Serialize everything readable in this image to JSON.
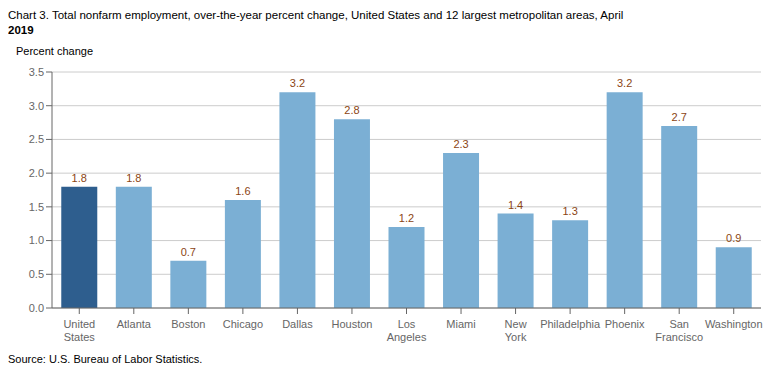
{
  "chart_data": {
    "type": "bar",
    "title": "Chart 3. Total nonfarm employment, over-the-year percent change, United States and 12 largest metropolitan areas, April\n2019",
    "y_label": "Percent change",
    "annotations": [
      "Source: U.S. Bureau of Labor Statistics."
    ],
    "categories": [
      "United\nStates",
      "Atlanta",
      "Boston",
      "Chicago",
      "Dallas",
      "Houston",
      "Los\nAngeles",
      "Miami",
      "New\nYork",
      "Philadelphia",
      "Phoenix",
      "San\nFrancisco",
      "Washington"
    ],
    "values": [
      1.8,
      1.8,
      0.7,
      1.6,
      3.2,
      2.8,
      1.2,
      2.3,
      1.4,
      1.3,
      3.2,
      2.7,
      0.9
    ],
    "colors": [
      "#2E5E8E",
      "#7BAFD4",
      "#7BAFD4",
      "#7BAFD4",
      "#7BAFD4",
      "#7BAFD4",
      "#7BAFD4",
      "#7BAFD4",
      "#7BAFD4",
      "#7BAFD4",
      "#7BAFD4",
      "#7BAFD4",
      "#7BAFD4"
    ],
    "ylim": [
      0,
      3.5
    ],
    "yticks": [
      {
        "value": 0,
        "label": "0.0"
      },
      0.5,
      {
        "value": 1,
        "label": "1.0"
      },
      1.5,
      {
        "value": 2,
        "label": "2.0"
      },
      2.5,
      {
        "value": 3,
        "label": "3.0"
      },
      3.5
    ],
    "grid": true,
    "data_labels": true
  }
}
